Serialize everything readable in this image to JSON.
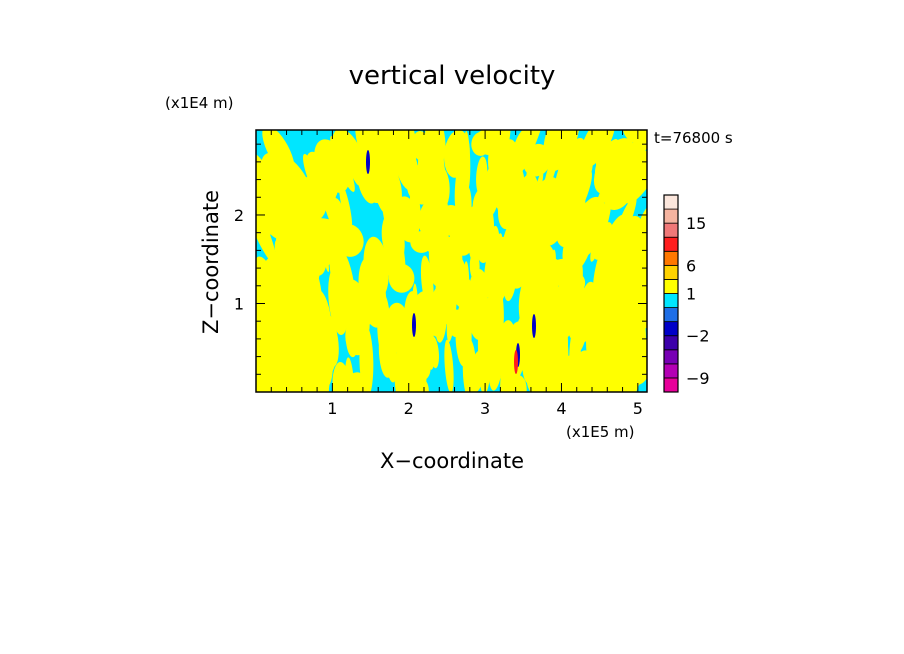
{
  "chart_data": {
    "type": "heatmap",
    "title": "vertical velocity",
    "xlabel": "X−coordinate",
    "ylabel": "Z−coordinate",
    "x_unit": "(x1E5 m)",
    "y_unit": "(x1E4 m)",
    "time_label": "t=76800 s",
    "xlim": [
      0,
      5.12
    ],
    "ylim": [
      0,
      2.96
    ],
    "x_ticks": [
      1,
      2,
      3,
      4,
      5
    ],
    "x_tick_labels": [
      "1",
      "2",
      "3",
      "4",
      "5"
    ],
    "y_ticks": [
      1,
      2
    ],
    "y_tick_labels": [
      "1",
      "2"
    ],
    "colorbar": {
      "levels": [
        -12,
        -9,
        -6,
        -3,
        -2,
        -1,
        0,
        1,
        3,
        6,
        9,
        12,
        15,
        18
      ],
      "colors": [
        "#e8009a",
        "#b400b4",
        "#7800b4",
        "#3c00aa",
        "#0000c8",
        "#1e6ee6",
        "#00e6ff",
        "#ffff00",
        "#ffd200",
        "#ff7800",
        "#ff1e1e",
        "#f07878",
        "#f5b4a0",
        "#fbe6dc"
      ],
      "tick_values": [
        15,
        6,
        1,
        -2,
        -9
      ],
      "tick_labels": [
        "15",
        "6",
        "1",
        "−2",
        "−9"
      ]
    },
    "field_colors": {
      "positive": "#ffff00",
      "negative": "#00e6ff",
      "strong_negative": "#0000c8",
      "strong_positive": "#ff1e1e"
    }
  }
}
